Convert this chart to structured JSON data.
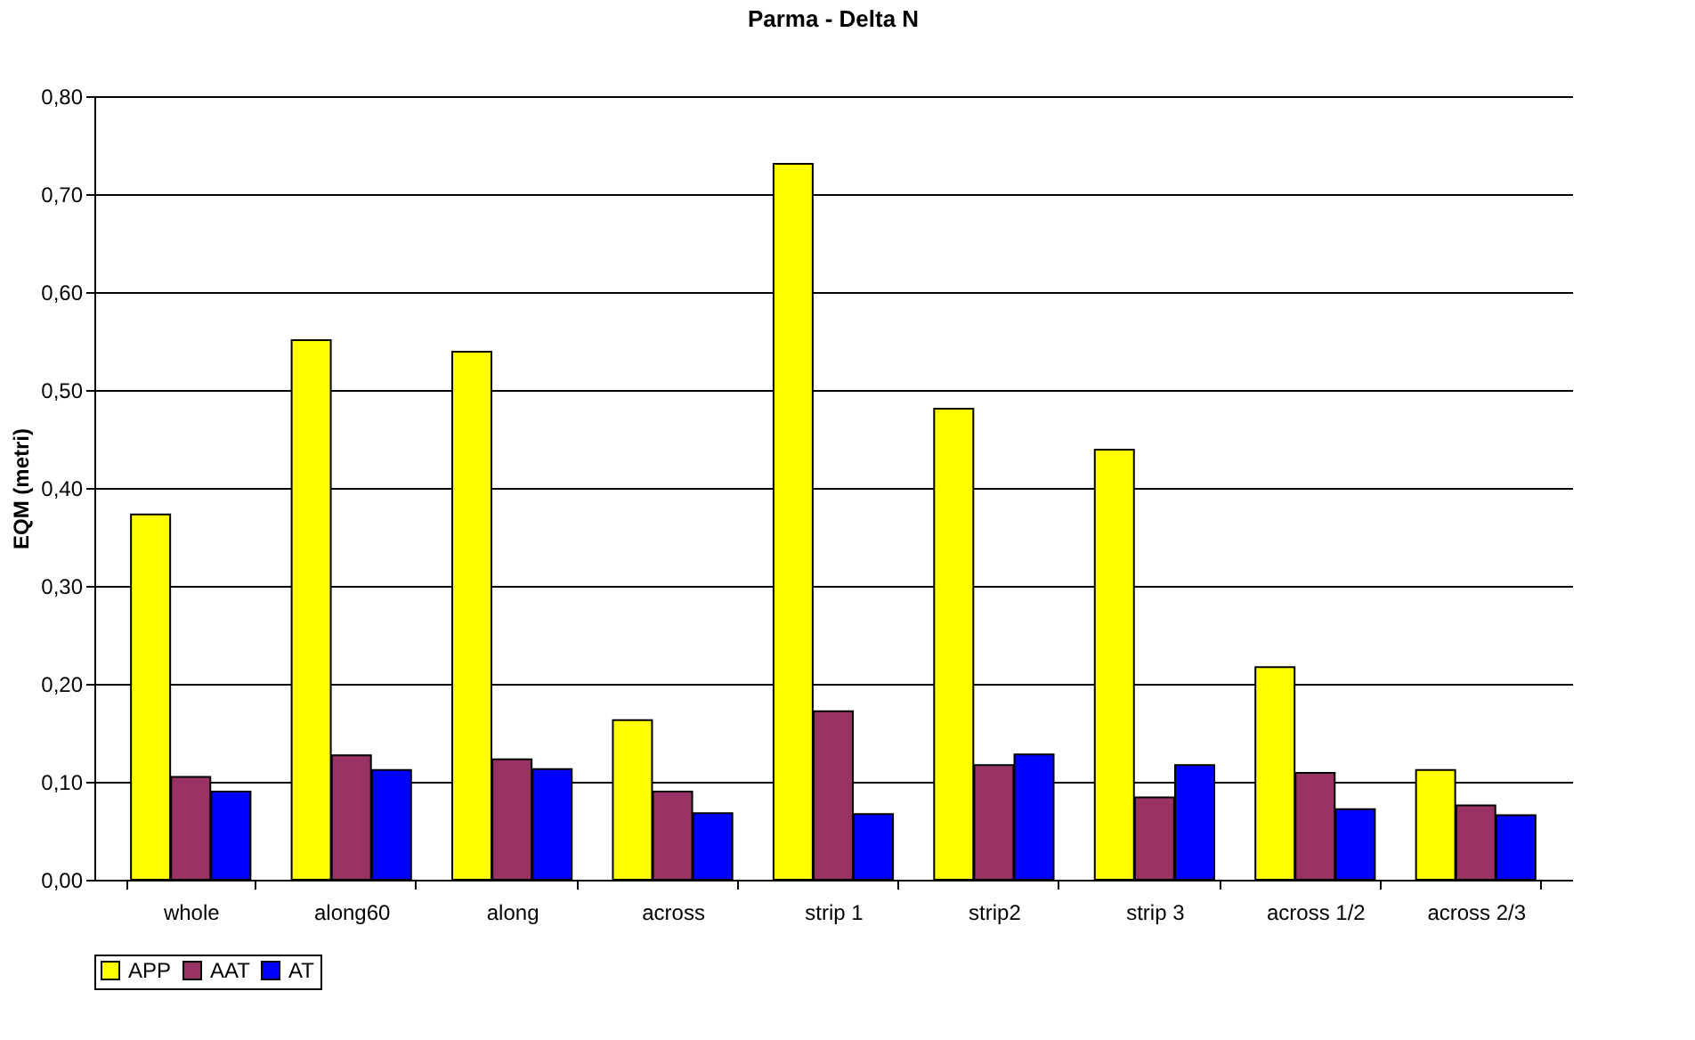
{
  "chart_data": {
    "type": "bar",
    "title": "Parma - Delta N",
    "ylabel": "EQM (metri)",
    "categories": [
      "whole",
      "along60",
      "along",
      "across",
      "strip 1",
      "strip2",
      "strip 3",
      "across 1/2",
      "across 2/3"
    ],
    "series": [
      {
        "name": "APP",
        "color": "#ffff00",
        "values": [
          0.373,
          0.551,
          0.539,
          0.163,
          0.731,
          0.481,
          0.439,
          0.217,
          0.112
        ]
      },
      {
        "name": "AAT",
        "color": "#993366",
        "values": [
          0.105,
          0.127,
          0.123,
          0.09,
          0.172,
          0.117,
          0.084,
          0.109,
          0.076
        ]
      },
      {
        "name": "AT",
        "color": "#0000ff",
        "values": [
          0.09,
          0.112,
          0.113,
          0.068,
          0.067,
          0.128,
          0.117,
          0.072,
          0.066
        ]
      }
    ],
    "ylim": [
      0,
      0.8
    ],
    "yticks": [
      {
        "value": 0,
        "label": "0,00"
      },
      {
        "value": 0.1,
        "label": "0,10"
      },
      {
        "value": 0.2,
        "label": "0,20"
      },
      {
        "value": 0.3,
        "label": "0,30"
      },
      {
        "value": 0.4,
        "label": "0,40"
      },
      {
        "value": 0.5,
        "label": "0,50"
      },
      {
        "value": 0.6,
        "label": "0,60"
      },
      {
        "value": 0.7,
        "label": "0,70"
      },
      {
        "value": 0.8,
        "label": "0,80"
      }
    ],
    "grid": "y",
    "legend": "bottom"
  }
}
